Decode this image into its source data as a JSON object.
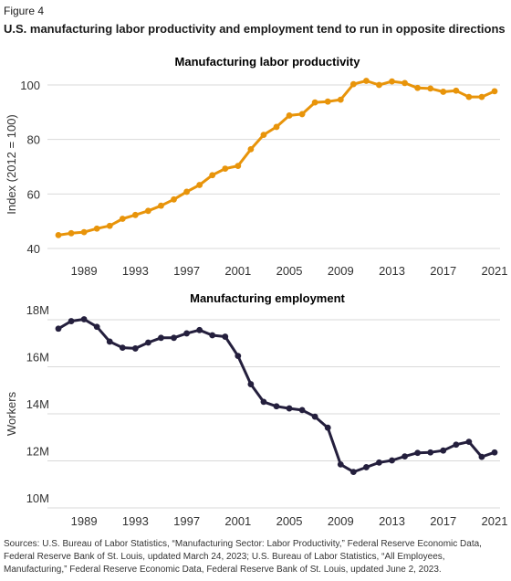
{
  "figure_label": "Figure 4",
  "figure_title": "U.S. manufacturing labor productivity and employment tend to run in opposite directions",
  "source_note": "Sources: U.S. Bureau of Labor Statistics, “Manufacturing Sector: Labor Productivity,” Federal Reserve Economic Data, Federal Reserve Bank of St. Louis, updated March 24, 2023; U.S. Bureau of Labor Statistics, “All Employees, Manufacturing,” Federal Reserve Economic Data, Federal Reserve Bank of St. Louis, updated June 2, 2023.",
  "colors": {
    "productivity": "#e8940a",
    "employment": "#241f3d",
    "grid": "#d9d9d9"
  },
  "chart_data": [
    {
      "type": "line",
      "title": "Manufacturing labor productivity",
      "xlabel": "",
      "ylabel": "Index (2012 = 100)",
      "xticks": [
        "1989",
        "1993",
        "1997",
        "2001",
        "2005",
        "2009",
        "2013",
        "2017",
        "2021"
      ],
      "yticks": [
        "40",
        "60",
        "80",
        "100"
      ],
      "xlim": [
        1987,
        2021
      ],
      "ylim": [
        40,
        100
      ],
      "grid": true,
      "x": [
        1987,
        1988,
        1989,
        1990,
        1991,
        1992,
        1993,
        1994,
        1995,
        1996,
        1997,
        1998,
        1999,
        2000,
        2001,
        2002,
        2003,
        2004,
        2005,
        2006,
        2007,
        2008,
        2009,
        2010,
        2011,
        2012,
        2013,
        2014,
        2015,
        2016,
        2017,
        2018,
        2019,
        2020,
        2021
      ],
      "series": [
        {
          "values": [
            44.9,
            45.6,
            46.0,
            47.3,
            48.3,
            50.9,
            52.3,
            53.8,
            55.7,
            58.0,
            60.8,
            63.3,
            66.9,
            69.3,
            70.3,
            76.4,
            81.7,
            84.6,
            88.8,
            89.3,
            93.6,
            93.9,
            94.6,
            100.3,
            101.5,
            100.0,
            101.3,
            100.7,
            98.9,
            98.7,
            97.5,
            97.9,
            95.6,
            95.6,
            97.7
          ]
        }
      ]
    },
    {
      "type": "line",
      "title": "Manufacturing employment",
      "xlabel": "",
      "ylabel": "Workers",
      "xticks": [
        "1989",
        "1993",
        "1997",
        "2001",
        "2005",
        "2009",
        "2013",
        "2017",
        "2021"
      ],
      "yticks": [
        "10M",
        "12M",
        "14M",
        "16M",
        "18M"
      ],
      "xlim": [
        1987,
        2021
      ],
      "ylim": [
        10,
        18
      ],
      "grid": true,
      "x": [
        1987,
        1988,
        1989,
        1990,
        1991,
        1992,
        1993,
        1994,
        1995,
        1996,
        1997,
        1998,
        1999,
        2000,
        2001,
        2002,
        2003,
        2004,
        2005,
        2006,
        2007,
        2008,
        2009,
        2010,
        2011,
        2012,
        2013,
        2014,
        2015,
        2016,
        2017,
        2018,
        2019,
        2020,
        2021
      ],
      "series": [
        {
          "values": [
            17.62,
            17.94,
            18.02,
            17.7,
            17.07,
            16.81,
            16.78,
            17.03,
            17.23,
            17.23,
            17.42,
            17.56,
            17.34,
            17.28,
            16.46,
            15.26,
            14.51,
            14.32,
            14.23,
            14.16,
            13.88,
            13.41,
            11.85,
            11.53,
            11.73,
            11.93,
            12.02,
            12.19,
            12.34,
            12.36,
            12.44,
            12.69,
            12.81,
            12.17,
            12.36
          ]
        }
      ]
    }
  ]
}
